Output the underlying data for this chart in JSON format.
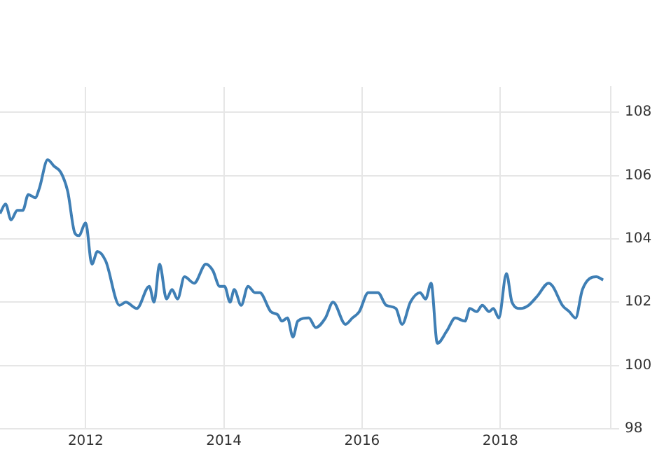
{
  "chart_data": {
    "type": "line",
    "x": [
      2010.76,
      2010.84,
      2010.92,
      2011.01,
      2011.09,
      2011.17,
      2011.27,
      2011.33,
      2011.45,
      2011.54,
      2011.64,
      2011.74,
      2011.84,
      2011.9,
      2012.0,
      2012.09,
      2012.17,
      2012.29,
      2012.49,
      2012.58,
      2012.74,
      2012.92,
      2012.99,
      2013.07,
      2013.17,
      2013.25,
      2013.33,
      2013.43,
      2013.57,
      2013.74,
      2013.84,
      2013.94,
      2014.01,
      2014.09,
      2014.15,
      2014.25,
      2014.35,
      2014.45,
      2014.52,
      2014.68,
      2014.78,
      2014.84,
      2014.92,
      2015.0,
      2015.07,
      2015.23,
      2015.33,
      2015.47,
      2015.58,
      2015.76,
      2015.86,
      2015.96,
      2016.09,
      2016.23,
      2016.35,
      2016.49,
      2016.58,
      2016.7,
      2016.84,
      2016.92,
      2017.0,
      2017.09,
      2017.23,
      2017.35,
      2017.49,
      2017.56,
      2017.66,
      2017.74,
      2017.84,
      2017.9,
      2017.98,
      2018.09,
      2018.17,
      2018.29,
      2018.41,
      2018.54,
      2018.7,
      2018.76,
      2018.9,
      2019.0,
      2019.09,
      2019.19,
      2019.39,
      2019.49
    ],
    "series": [
      {
        "color": "#3f7fb5",
        "values": [
          104.8,
          105.1,
          104.6,
          104.9,
          104.9,
          105.4,
          105.3,
          105.6,
          106.5,
          106.3,
          106.1,
          105.5,
          104.2,
          104.1,
          104.5,
          103.2,
          103.6,
          103.3,
          101.9,
          102.0,
          101.8,
          102.5,
          102.0,
          103.2,
          102.1,
          102.4,
          102.1,
          102.8,
          102.6,
          103.2,
          103.0,
          102.5,
          102.5,
          102.0,
          102.4,
          101.9,
          102.5,
          102.3,
          102.3,
          101.7,
          101.6,
          101.4,
          101.5,
          100.9,
          101.4,
          101.5,
          101.2,
          101.5,
          102.0,
          101.3,
          101.5,
          101.7,
          102.3,
          102.3,
          101.9,
          101.8,
          101.3,
          102.0,
          102.3,
          102.1,
          102.6,
          100.7,
          101.1,
          101.5,
          101.4,
          101.8,
          101.7,
          101.9,
          101.7,
          101.8,
          101.5,
          102.9,
          102.0,
          101.8,
          101.9,
          102.2,
          102.6,
          102.5,
          101.9,
          101.7,
          101.5,
          102.4,
          102.8,
          102.7
        ]
      }
    ],
    "xlim": [
      2010.76,
      2019.6
    ],
    "xticks": [
      2012,
      2014,
      2016,
      2018
    ],
    "ylim": [
      98,
      108.8
    ],
    "yticks": [
      98,
      100,
      102,
      104,
      106,
      108
    ],
    "grid": true,
    "legend": false,
    "marker": "none",
    "line_style": "solid"
  }
}
